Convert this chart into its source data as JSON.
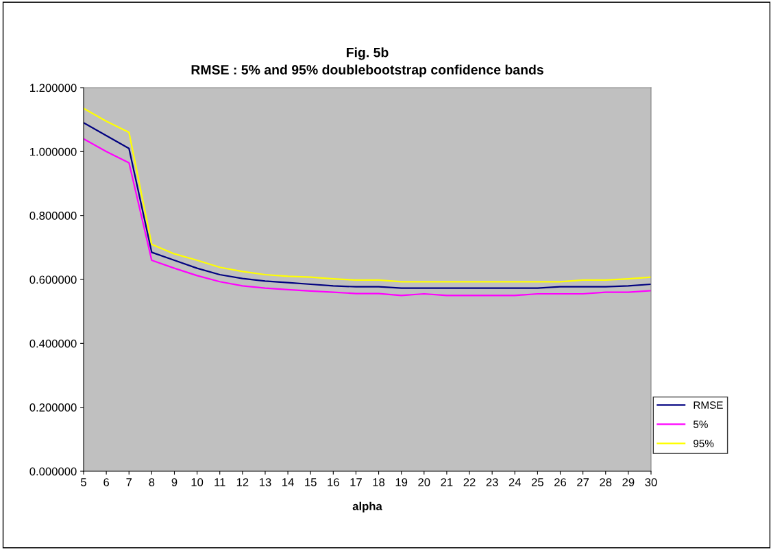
{
  "chart_data": {
    "type": "line",
    "title": "Fig. 5b\nRMSE : 5% and 95% doublebootstrap confidence bands",
    "xlabel": "alpha",
    "categories": [
      "5",
      "6",
      "7",
      "8",
      "9",
      "10",
      "11",
      "12",
      "13",
      "14",
      "15",
      "16",
      "17",
      "18",
      "19",
      "20",
      "21",
      "22",
      "23",
      "24",
      "25",
      "26",
      "27",
      "28",
      "29",
      "30"
    ],
    "series": [
      {
        "name": "RMSE",
        "color": "#000080",
        "values": [
          1.09,
          1.05,
          1.01,
          0.685,
          0.66,
          0.635,
          0.615,
          0.603,
          0.595,
          0.59,
          0.585,
          0.58,
          0.577,
          0.577,
          0.573,
          0.573,
          0.573,
          0.573,
          0.573,
          0.573,
          0.573,
          0.577,
          0.577,
          0.577,
          0.58,
          0.585
        ]
      },
      {
        "name": "5%",
        "color": "#ff00ff",
        "values": [
          1.04,
          1.0,
          0.965,
          0.66,
          0.635,
          0.612,
          0.593,
          0.58,
          0.573,
          0.568,
          0.564,
          0.56,
          0.556,
          0.556,
          0.55,
          0.555,
          0.55,
          0.55,
          0.55,
          0.55,
          0.555,
          0.555,
          0.555,
          0.56,
          0.56,
          0.565
        ]
      },
      {
        "name": "95%",
        "color": "#ffff00",
        "values": [
          1.135,
          1.095,
          1.06,
          0.71,
          0.68,
          0.66,
          0.638,
          0.625,
          0.615,
          0.61,
          0.607,
          0.602,
          0.598,
          0.598,
          0.593,
          0.593,
          0.593,
          0.593,
          0.593,
          0.593,
          0.593,
          0.593,
          0.598,
          0.598,
          0.602,
          0.607
        ]
      }
    ],
    "ylim": [
      0,
      1.2
    ],
    "yticks": [
      {
        "value": 0,
        "label": "0.000000"
      },
      {
        "value": 0.2,
        "label": "0.200000"
      },
      {
        "value": 0.4,
        "label": "0.400000"
      },
      {
        "value": 0.6,
        "label": "0.600000"
      },
      {
        "value": 0.8,
        "label": "0.800000"
      },
      {
        "value": 1.0,
        "label": "1.000000"
      },
      {
        "value": 1.2,
        "label": "1.200000"
      }
    ],
    "grid": false,
    "legend": "right",
    "marker": "none",
    "line_style": "solid"
  }
}
